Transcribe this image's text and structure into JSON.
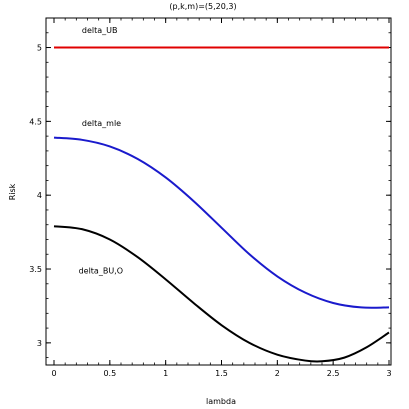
{
  "chart_data": {
    "type": "line",
    "title": "(p,k,m)=(5,20,3)",
    "xlabel": "lambda",
    "ylabel": "Risk",
    "xlim": [
      0,
      3
    ],
    "ylim": [
      2.85,
      5.2
    ],
    "grid": false,
    "x_ticks": [
      "0",
      "0.5",
      "1",
      "1.5",
      "2",
      "2.5",
      "3"
    ],
    "y_ticks": [
      "3",
      "3.5",
      "4",
      "4.5",
      "5"
    ],
    "series": [
      {
        "name": "delta_UB",
        "color": "#e00000",
        "x": [
          0,
          0.5,
          1,
          1.5,
          2,
          2.5,
          3
        ],
        "y": [
          5,
          5,
          5,
          5,
          5,
          5,
          5
        ]
      },
      {
        "name": "delta_mle",
        "color": "#1a1acc",
        "x": [
          0,
          0.25,
          0.5,
          0.75,
          1,
          1.25,
          1.5,
          1.75,
          2,
          2.25,
          2.5,
          2.75,
          3
        ],
        "y": [
          4.39,
          4.375,
          4.33,
          4.245,
          4.12,
          3.96,
          3.78,
          3.6,
          3.45,
          3.34,
          3.27,
          3.24,
          3.24
        ]
      },
      {
        "name": "delta_BU,O",
        "color": "#000000",
        "x": [
          0,
          0.25,
          0.5,
          0.75,
          1,
          1.25,
          1.5,
          1.75,
          2,
          2.25,
          2.4,
          2.6,
          2.8,
          3
        ],
        "y": [
          3.79,
          3.77,
          3.7,
          3.58,
          3.43,
          3.27,
          3.12,
          3.0,
          2.92,
          2.88,
          2.875,
          2.9,
          2.97,
          3.07
        ]
      }
    ],
    "annotations": [
      {
        "text": "delta_UB",
        "x": 0.25,
        "y": 5.1
      },
      {
        "text": "delta_mle",
        "x": 0.25,
        "y": 4.47
      },
      {
        "text": "delta_BU,O",
        "x": 0.22,
        "y": 3.47
      }
    ]
  }
}
